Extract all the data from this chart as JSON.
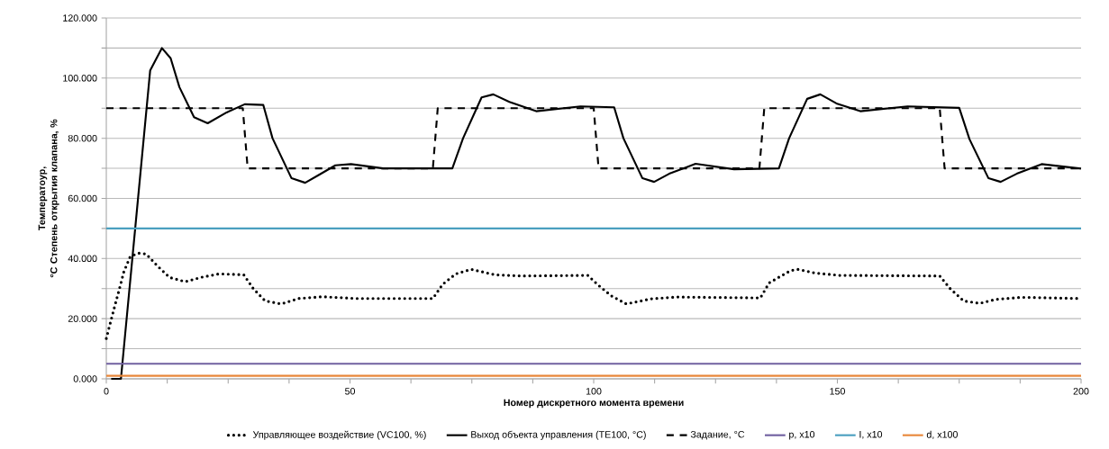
{
  "chart_data": {
    "type": "line",
    "xlabel": "Номер дискретного момента времени",
    "ylabel": "Температоур, °C Степень открытия клапана, %",
    "xlim": [
      0,
      200
    ],
    "ylim": [
      0,
      120
    ],
    "xticks": [
      0,
      {
        "value": 12.5,
        "label": null
      },
      {
        "value": 25,
        "label": null
      },
      {
        "value": 37.5,
        "label": null
      },
      50,
      {
        "value": 62.5,
        "label": null
      },
      {
        "value": 75,
        "label": null
      },
      {
        "value": 87.5,
        "label": null
      },
      100,
      {
        "value": 112.5,
        "label": null
      },
      {
        "value": 125,
        "label": null
      },
      {
        "value": 137.5,
        "label": null
      },
      150,
      {
        "value": 162.5,
        "label": null
      },
      {
        "value": 175,
        "label": null
      },
      {
        "value": 187.5,
        "label": null
      },
      200
    ],
    "yticks": [
      {
        "value": 0,
        "label": "0.000"
      },
      {
        "value": 10,
        "label": null
      },
      {
        "value": 20,
        "label": "20.000"
      },
      {
        "value": 30,
        "label": null
      },
      {
        "value": 40,
        "label": "40.000"
      },
      {
        "value": 50,
        "label": null
      },
      {
        "value": 60,
        "label": "60.000"
      },
      {
        "value": 70,
        "label": null
      },
      {
        "value": 80,
        "label": "80.000"
      },
      {
        "value": 90,
        "label": null
      },
      {
        "value": 100,
        "label": "100.000"
      },
      {
        "value": 110,
        "label": null
      },
      {
        "value": 120,
        "label": "120.000"
      }
    ],
    "grid": "y",
    "legend": "bottom",
    "marker": "none",
    "series": [
      {
        "name": "Управляющее воздействие (VC100, %)",
        "color": "#000000",
        "line_style": "dotted",
        "x": [
          0,
          0.9,
          1.8,
          2.7,
          3.6,
          4.9,
          6.5,
          8.2,
          10.5,
          13,
          16.2,
          19.6,
          23.2,
          28.2,
          30.2,
          32.6,
          35.9,
          39.4,
          44.4,
          51.4,
          67,
          69,
          71.7,
          74.9,
          79.7,
          85.2,
          98.8,
          100.9,
          103.6,
          106.7,
          111.8,
          117,
          134.2,
          136,
          137.6,
          140.4,
          142,
          145.3,
          150.4,
          171,
          173.2,
          175.9,
          179.2,
          182.5,
          187.7,
          200
        ],
        "values": [
          13.4,
          19.1,
          24.6,
          30,
          35.6,
          40.6,
          41.8,
          41.5,
          37.5,
          33.7,
          32.3,
          33.8,
          34.9,
          34.6,
          29.9,
          25.9,
          24.9,
          26.7,
          27.3,
          26.7,
          26.7,
          31.4,
          34.9,
          36.4,
          34.6,
          34.2,
          34.4,
          31.2,
          27.6,
          24.9,
          26.6,
          27.2,
          26.9,
          31.9,
          33.4,
          36,
          36.4,
          35.2,
          34.4,
          34.2,
          29.9,
          25.9,
          25.1,
          26.4,
          27.1,
          26.7
        ]
      },
      {
        "name": "Выход объекта управления (TE100, °C)",
        "color": "#000000",
        "line_style": "solid",
        "x": [
          1,
          3,
          9,
          11.4,
          13.2,
          15,
          18,
          20.8,
          24.7,
          28.4,
          32.2,
          34.1,
          38,
          40.8,
          43.5,
          47,
          50.2,
          56.8,
          71,
          73.2,
          77,
          79.4,
          82.7,
          88.2,
          97.3,
          104.2,
          106.1,
          110,
          112.4,
          115.5,
          120.9,
          128.8,
          138,
          140.1,
          143.8,
          146.5,
          149.8,
          154.7,
          164.4,
          175,
          177.1,
          181,
          183.5,
          186.8,
          191.9,
          200
        ],
        "values": [
          0,
          0,
          102.6,
          110,
          106.6,
          97,
          87,
          85,
          88.6,
          91.3,
          91.1,
          80,
          66.7,
          65.2,
          67.7,
          71,
          71.4,
          70,
          70,
          80,
          93.6,
          94.6,
          92.1,
          89,
          90.6,
          90.3,
          80,
          66.7,
          65.5,
          68.2,
          71.5,
          69.7,
          70,
          80,
          93.1,
          94.6,
          91.6,
          89,
          90.6,
          90.1,
          79.7,
          66.7,
          65.5,
          68.2,
          71.4,
          69.9
        ]
      },
      {
        "name": "Задание, °C",
        "color": "#000000",
        "line_style": "dashed",
        "x": [
          0,
          28,
          29,
          67,
          68,
          100,
          101,
          134,
          135,
          171,
          172,
          200
        ],
        "values": [
          90,
          90,
          70,
          70,
          90,
          90,
          70,
          70,
          90,
          90,
          70,
          70
        ]
      },
      {
        "name": "p, x10",
        "color": "#7060a0",
        "line_style": "solid",
        "x": [
          0,
          200
        ],
        "values": [
          5,
          5
        ]
      },
      {
        "name": "I, x10",
        "color": "#4a9fbf",
        "line_style": "solid",
        "x": [
          0,
          200
        ],
        "values": [
          50,
          50
        ]
      },
      {
        "name": "d, x100",
        "color": "#e8873a",
        "line_style": "solid",
        "x": [
          0,
          200
        ],
        "values": [
          1,
          1
        ]
      }
    ]
  }
}
